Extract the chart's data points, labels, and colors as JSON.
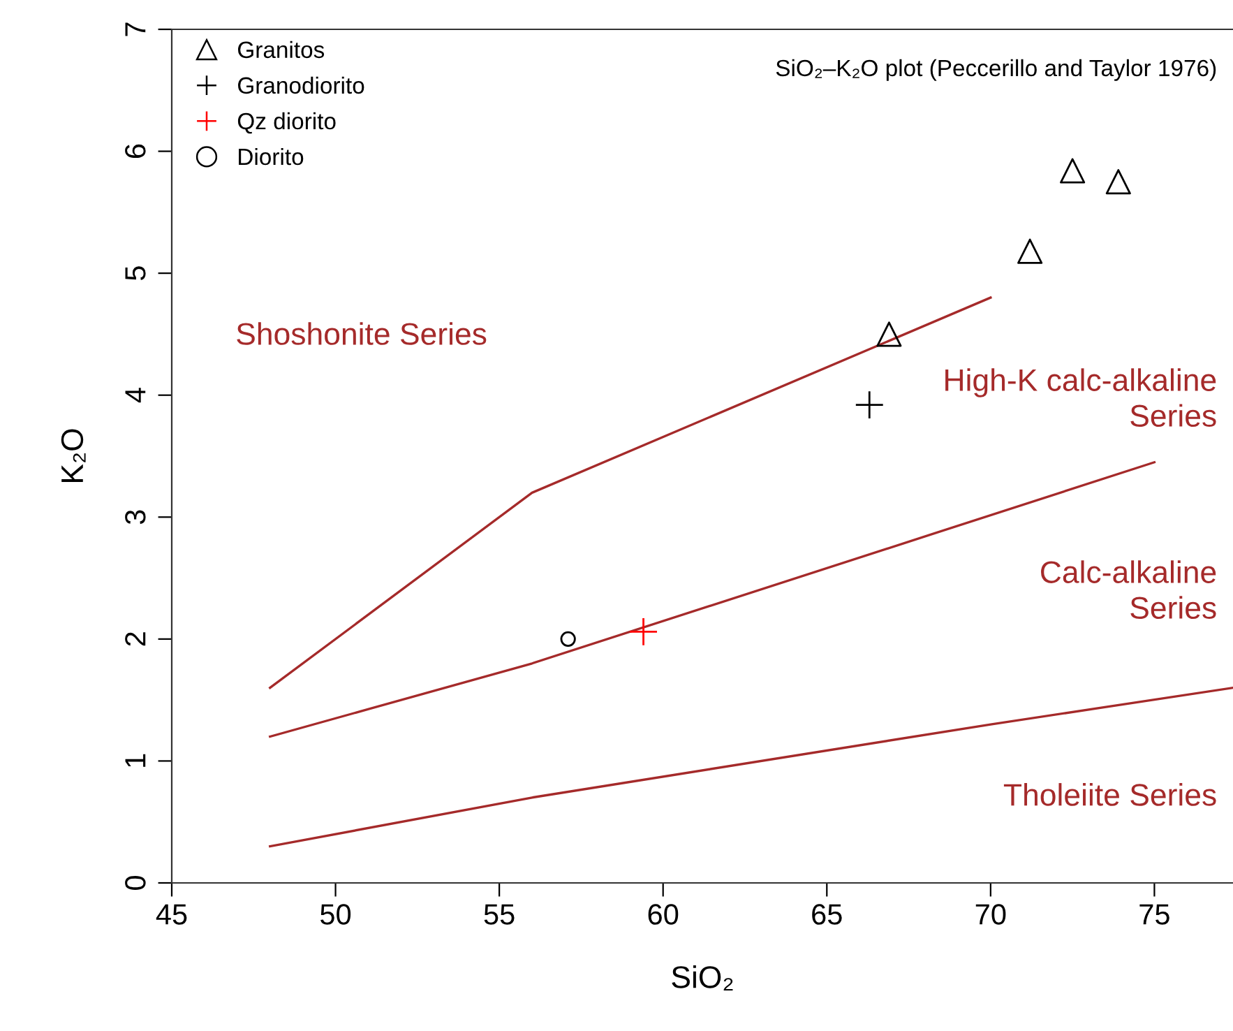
{
  "chart_data": {
    "type": "scatter",
    "title": "SiO₂–K₂O plot (Peccerillo and Taylor 1976)",
    "xlabel": "SiO₂",
    "ylabel": "K₂O",
    "xlim": [
      45,
      77.4
    ],
    "ylim": [
      0,
      7
    ],
    "xticks": [
      45,
      50,
      55,
      60,
      65,
      70,
      75
    ],
    "yticks": [
      0,
      1,
      2,
      3,
      4,
      5,
      6,
      7
    ],
    "grid": false,
    "legend": "top left",
    "series": [
      {
        "type": "line",
        "color": "#a52a2a",
        "marker": "none",
        "line_style": "solid",
        "x": [
          48,
          56,
          70
        ],
        "values": [
          1.6,
          3.2,
          4.8
        ]
      },
      {
        "type": "line",
        "color": "#a52a2a",
        "marker": "none",
        "line_style": "solid",
        "x": [
          48,
          56,
          75
        ],
        "values": [
          1.2,
          1.8,
          3.45
        ]
      },
      {
        "type": "line",
        "color": "#a52a2a",
        "marker": "none",
        "line_style": "solid",
        "x": [
          48,
          56,
          70,
          77.4
        ],
        "values": [
          0.3,
          0.7,
          1.3,
          1.6
        ]
      },
      {
        "name": "Granitos",
        "color": "#000000",
        "marker": "triangle",
        "x": [
          66.9,
          71.2,
          72.5,
          73.9
        ],
        "values": [
          4.5,
          5.18,
          5.84,
          5.75
        ]
      },
      {
        "name": "Granodiorito",
        "color": "#000000",
        "marker": "cross",
        "x": [
          66.3
        ],
        "values": [
          3.92
        ]
      },
      {
        "name": "Qz diorito",
        "color": "#ff0000",
        "marker": "cross",
        "x": [
          59.4
        ],
        "values": [
          2.06
        ]
      },
      {
        "name": "Diorito",
        "color": "#000000",
        "marker": "circle",
        "x": [
          57.1
        ],
        "values": [
          2.0
        ]
      }
    ],
    "annotations": [
      "Shoshonite Series",
      "High-K calc-alkaline\nSeries",
      "Calc-alkaline\nSeries",
      "Tholeiite Series"
    ]
  }
}
